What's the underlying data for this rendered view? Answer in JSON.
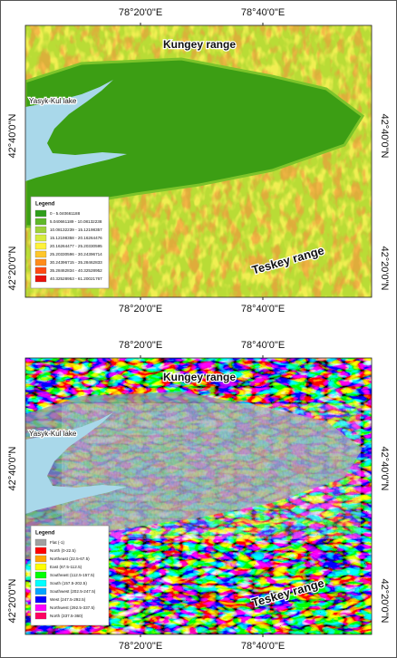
{
  "panels": [
    {
      "lon_labels": [
        "78°20'0\"E",
        "78°40'0\"E"
      ],
      "lat_labels": [
        "42°40'0\"N",
        "42°20'0\"N"
      ],
      "places": {
        "north_range": "Kungey range",
        "south_range": "Teskey range",
        "lake": "Yasyk-Kul lake"
      },
      "legend": {
        "title": "Legend",
        "items": [
          {
            "label": "0 - 5.040661188",
            "color": "#2e9e1a"
          },
          {
            "label": "5.040661189 - 10.08132238",
            "color": "#5fb82a"
          },
          {
            "label": "10.08132239 - 15.12198357",
            "color": "#9fd23a"
          },
          {
            "label": "15.12198358 - 20.16264476",
            "color": "#d7ec3c"
          },
          {
            "label": "20.16264477 - 25.20330595",
            "color": "#fff23a"
          },
          {
            "label": "25.20330596 - 30.24396714",
            "color": "#ffc62a"
          },
          {
            "label": "30.24396715 - 35.28462833",
            "color": "#ff8c1a"
          },
          {
            "label": "35.28462834 - 40.32528952",
            "color": "#ff4a12"
          },
          {
            "label": "40.32528953 - 61.20021767",
            "color": "#e8100c"
          }
        ]
      }
    },
    {
      "lon_labels": [
        "78°20'0\"E",
        "78°40'0\"E"
      ],
      "lat_labels": [
        "42°40'0\"N",
        "42°20'0\"N"
      ],
      "places": {
        "north_range": "Kungey range",
        "south_range": "Teskey range",
        "lake": "Yasyk-Kul lake"
      },
      "legend": {
        "title": "Legend",
        "items": [
          {
            "label": "Flat (-1)",
            "color": "#a0a0a0"
          },
          {
            "label": "North (0-22.5)",
            "color": "#ff0000"
          },
          {
            "label": "Northeast (22.5-67.5)",
            "color": "#ffa500"
          },
          {
            "label": "East (67.5-112.5)",
            "color": "#ffff00"
          },
          {
            "label": "Southeast (112.5-157.5)",
            "color": "#00ff00"
          },
          {
            "label": "South (157.5-202.5)",
            "color": "#00ffff"
          },
          {
            "label": "Southwest (202.5-247.5)",
            "color": "#00a6ff"
          },
          {
            "label": "West (247.5-292.5)",
            "color": "#0000ff"
          },
          {
            "label": "Northwest (292.5-337.5)",
            "color": "#ff00ff"
          },
          {
            "label": "North (337.5-360)",
            "color": "#ff0060"
          }
        ]
      }
    }
  ]
}
